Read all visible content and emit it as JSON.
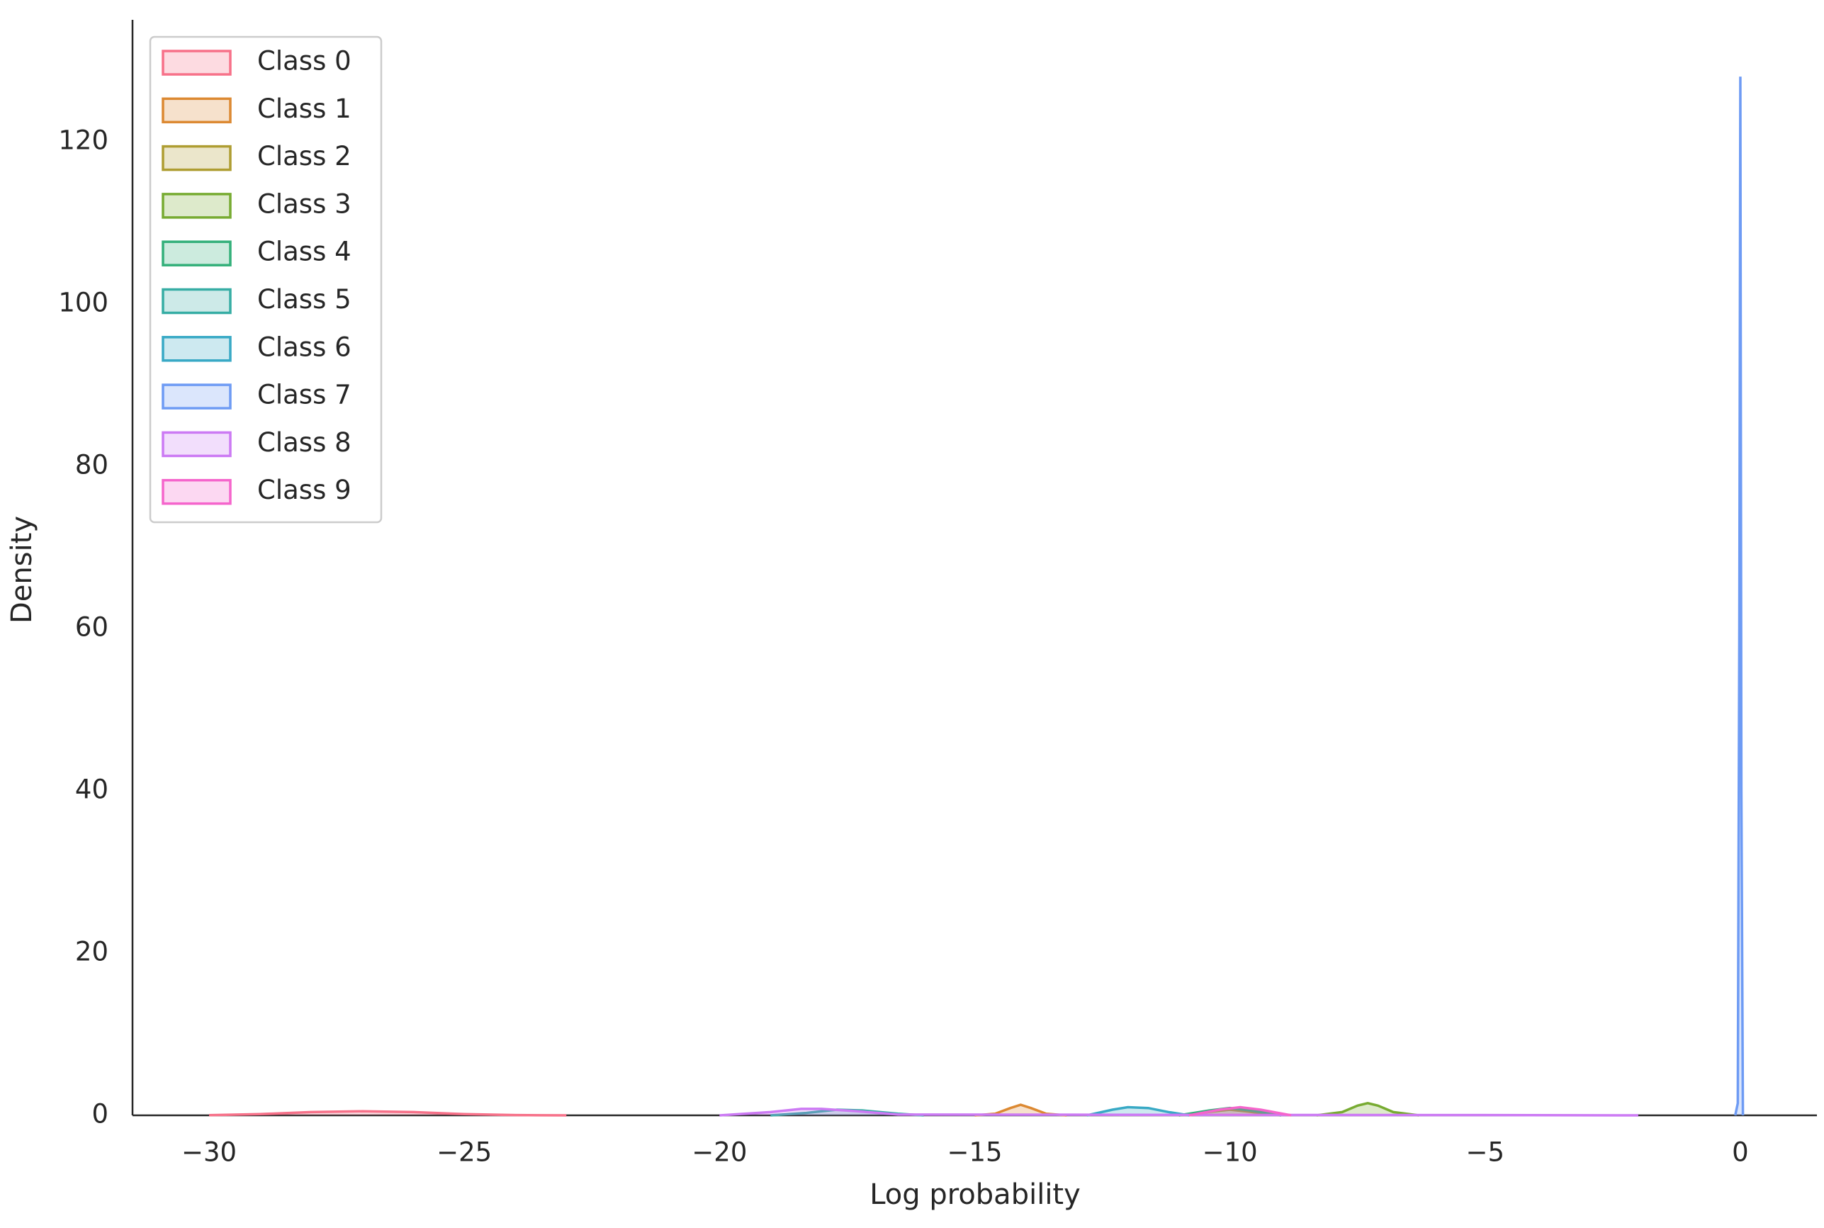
{
  "chart_data": {
    "type": "kde",
    "xlabel": "Log probability",
    "ylabel": "Density",
    "xlim": [
      -31.5,
      1.5
    ],
    "ylim": [
      0,
      135
    ],
    "xticks": [
      {
        "value": -30,
        "label": "−30"
      },
      {
        "value": -25,
        "label": "−25"
      },
      {
        "value": -20,
        "label": "−20"
      },
      {
        "value": -15,
        "label": "−15"
      },
      {
        "value": -10,
        "label": "−10"
      },
      {
        "value": -5,
        "label": "−5"
      },
      0
    ],
    "yticks": [
      0,
      20,
      40,
      60,
      80,
      100,
      120
    ],
    "grid": false,
    "legend": "upper left",
    "series": [
      {
        "name": "Class 0",
        "color": "#f77189",
        "x": [
          -30,
          -29,
          -28,
          -27,
          -26,
          -25,
          -24,
          -23
        ],
        "values": [
          0.02,
          0.15,
          0.4,
          0.5,
          0.4,
          0.15,
          0.03,
          0
        ]
      },
      {
        "name": "Class 1",
        "color": "#dc8932",
        "x": [
          -15,
          -14.6,
          -14.3,
          -14.1,
          -13.9,
          -13.6,
          -13.2
        ],
        "values": [
          0,
          0.2,
          0.9,
          1.3,
          0.9,
          0.2,
          0
        ]
      },
      {
        "name": "Class 2",
        "color": "#ae9d31",
        "x": [
          -11,
          -10.3,
          -10,
          -9.7,
          -9
        ],
        "values": [
          0,
          0.5,
          0.7,
          0.5,
          0
        ]
      },
      {
        "name": "Class 3",
        "color": "#77ab31",
        "x": [
          -8.3,
          -7.8,
          -7.5,
          -7.3,
          -7.1,
          -6.8,
          -6.3
        ],
        "values": [
          0,
          0.4,
          1.2,
          1.5,
          1.2,
          0.4,
          0
        ]
      },
      {
        "name": "Class 4",
        "color": "#33b07a",
        "x": [
          -11,
          -10.4,
          -10,
          -9.6,
          -9
        ],
        "values": [
          0,
          0.6,
          0.9,
          0.6,
          0
        ]
      },
      {
        "name": "Class 5",
        "color": "#36ada4",
        "x": [
          -19,
          -18.3,
          -17.7,
          -17.2,
          -16.5,
          -16
        ],
        "values": [
          0,
          0.3,
          0.7,
          0.6,
          0.2,
          0
        ]
      },
      {
        "name": "Class 6",
        "color": "#38a9c5",
        "x": [
          -12.8,
          -12.3,
          -12,
          -11.6,
          -11.2,
          -10.8
        ],
        "values": [
          0,
          0.7,
          1.0,
          0.9,
          0.4,
          0
        ]
      },
      {
        "name": "Class 7",
        "color": "#6e9bf4",
        "x": [
          -0.1,
          -0.05,
          -0.02,
          0,
          0.02,
          0.05
        ],
        "values": [
          0,
          1.5,
          60,
          128,
          40,
          0
        ]
      },
      {
        "name": "Class 8",
        "color": "#cc7af4",
        "x": [
          -20,
          -19,
          -18.4,
          -18,
          -17.3,
          -16.5,
          -10,
          -5,
          -2
        ],
        "values": [
          0,
          0.4,
          0.8,
          0.8,
          0.5,
          0.1,
          0.05,
          0.03,
          0
        ]
      },
      {
        "name": "Class 9",
        "color": "#f565cc",
        "x": [
          -10.8,
          -10.2,
          -9.8,
          -9.4,
          -8.8
        ],
        "values": [
          0,
          0.7,
          1.0,
          0.7,
          0
        ]
      }
    ]
  }
}
